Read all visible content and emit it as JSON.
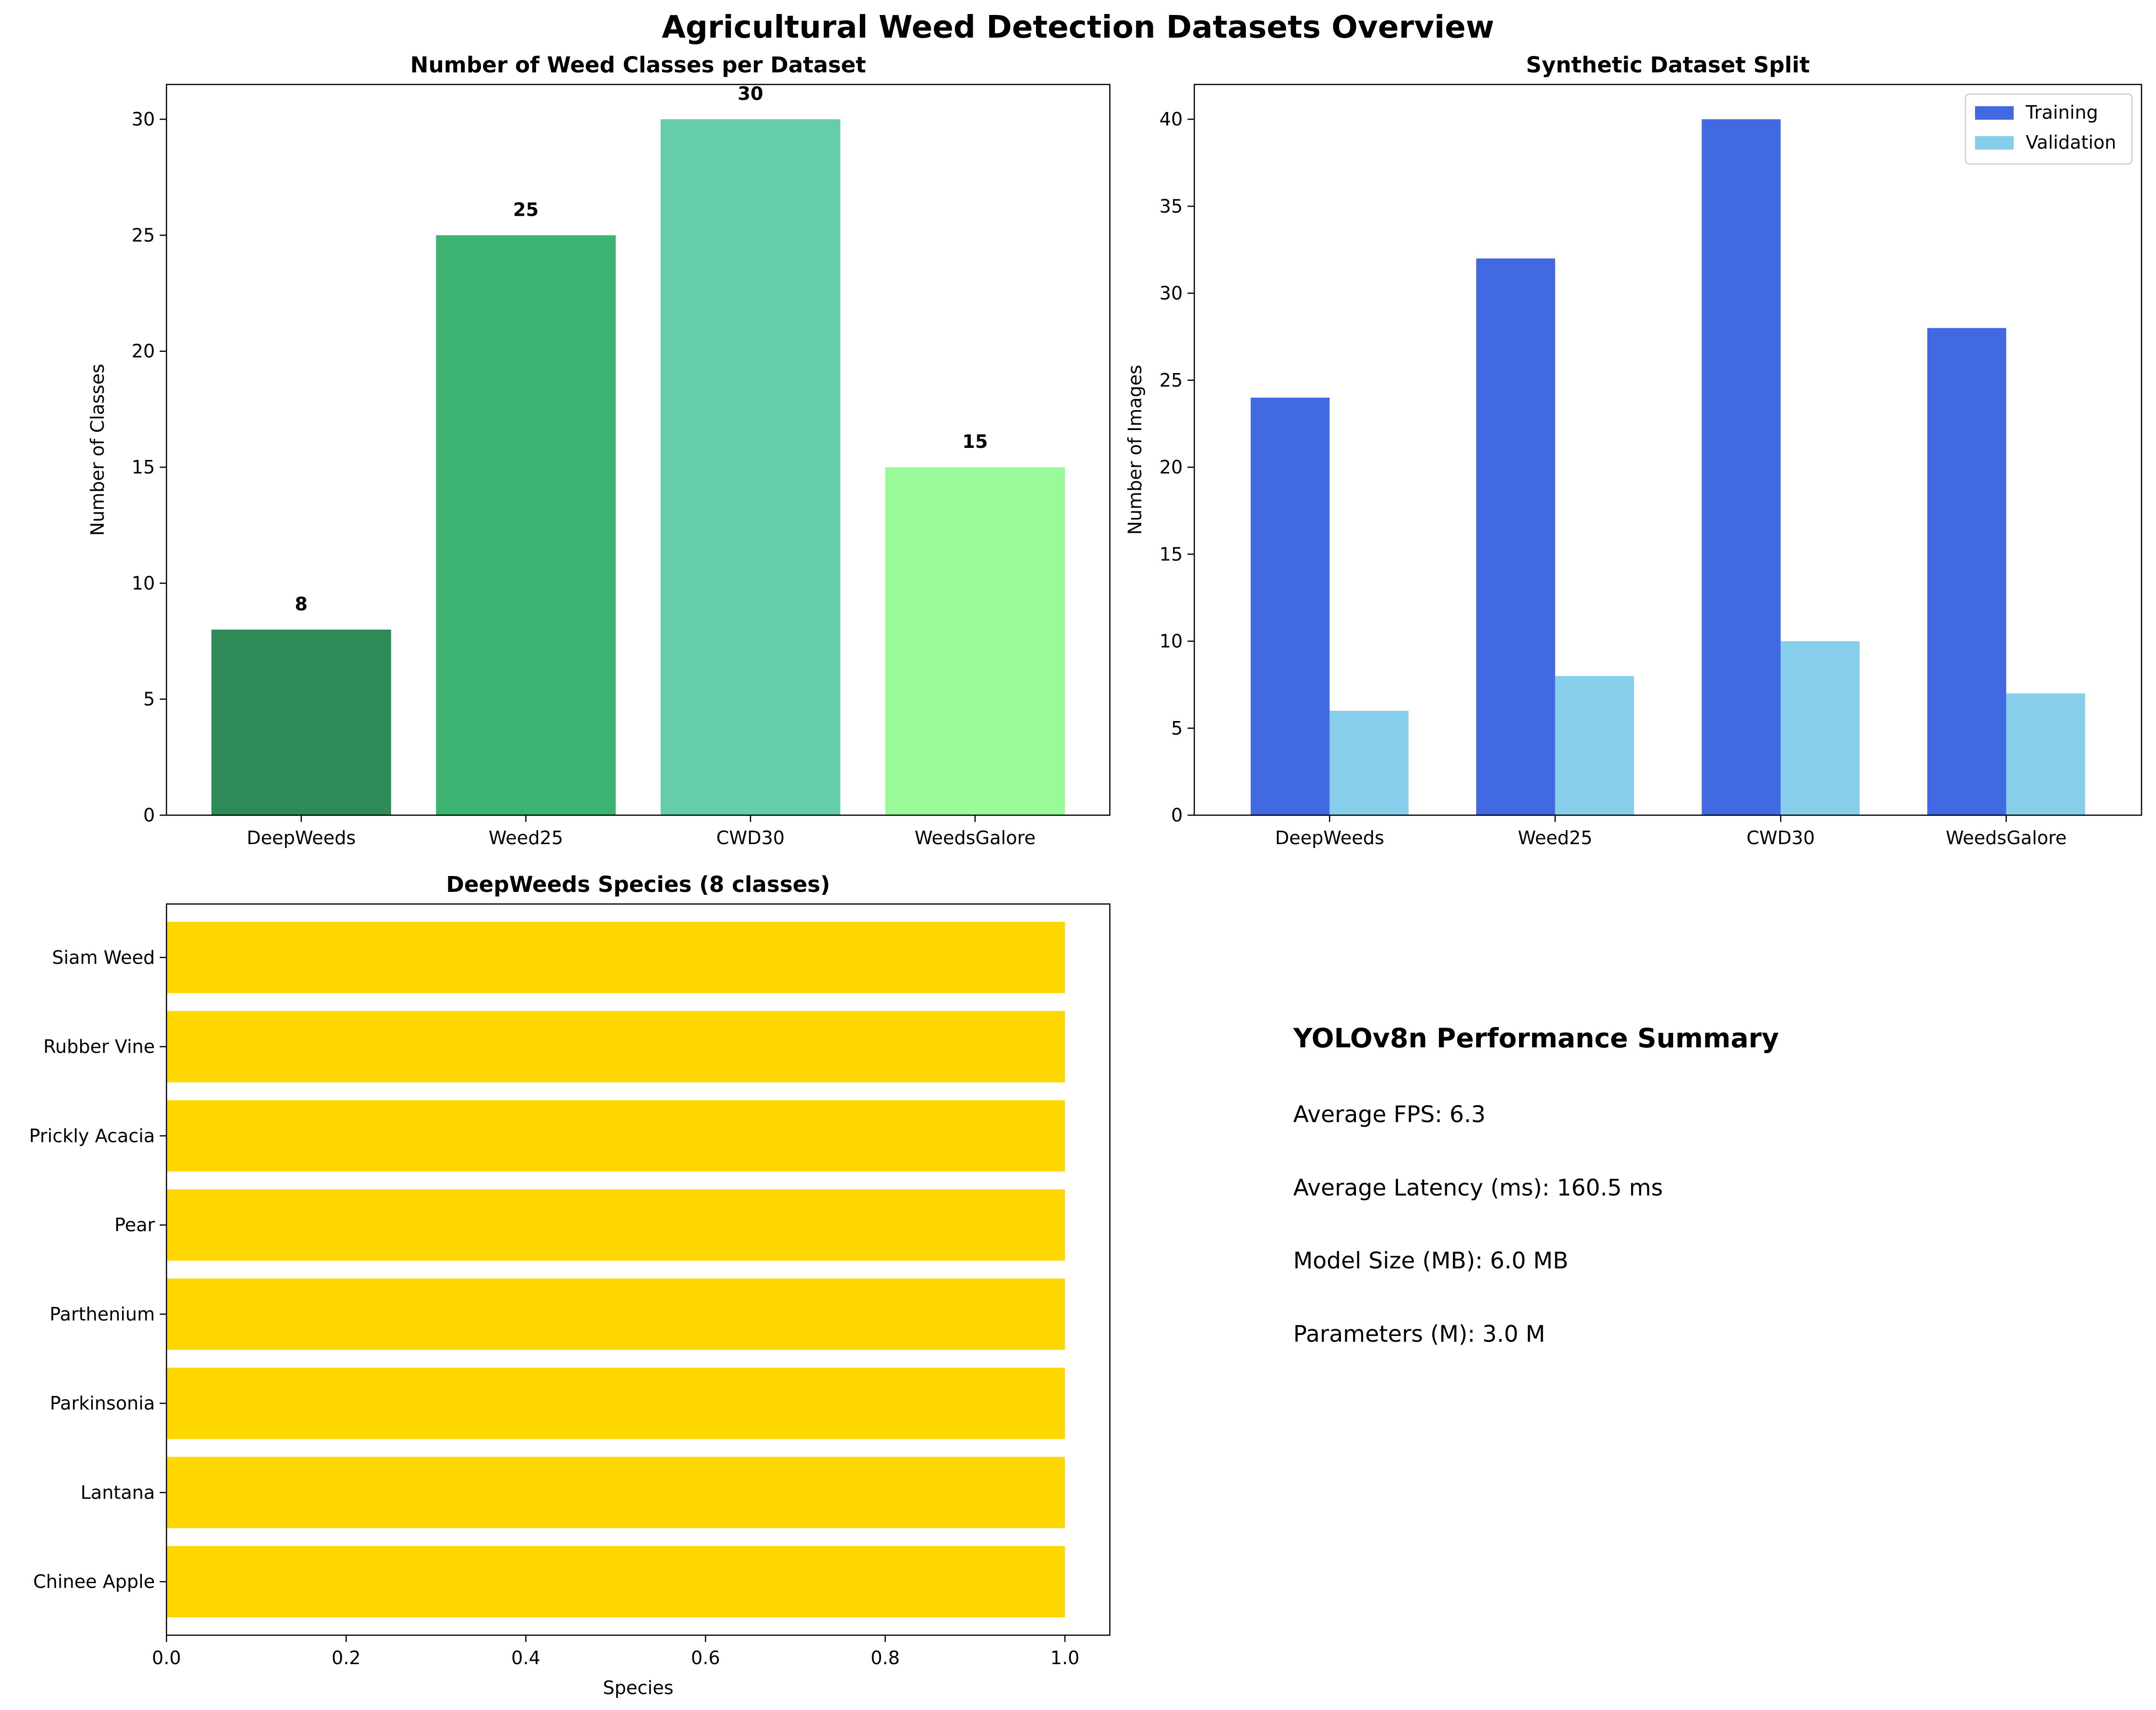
{
  "figure": {
    "title": "Agricultural Weed Detection Datasets Overview"
  },
  "chart_data": [
    {
      "type": "bar",
      "title": "Number of Weed Classes per Dataset",
      "xlabel": "",
      "ylabel": "Number of Classes",
      "categories": [
        "DeepWeeds",
        "Weed25",
        "CWD30",
        "WeedsGalore"
      ],
      "values": [
        8,
        25,
        30,
        15
      ],
      "data_labels": [
        "8",
        "25",
        "30",
        "15"
      ],
      "colors": [
        "#2e8b57",
        "#3cb371",
        "#66cdaa",
        "#98fb98"
      ],
      "ylim": [
        0,
        31.5
      ],
      "yticks": [
        0,
        5,
        10,
        15,
        20,
        25,
        30
      ],
      "grid": false
    },
    {
      "type": "bar",
      "title": "Synthetic Dataset Split",
      "xlabel": "",
      "ylabel": "Number of Images",
      "categories": [
        "DeepWeeds",
        "Weed25",
        "CWD30",
        "WeedsGalore"
      ],
      "series": [
        {
          "name": "Training",
          "values": [
            24,
            32,
            40,
            28
          ],
          "color": "#4169e1"
        },
        {
          "name": "Validation",
          "values": [
            6,
            8,
            10,
            7
          ],
          "color": "#87ceeb"
        }
      ],
      "ylim": [
        0,
        42
      ],
      "yticks": [
        0,
        5,
        10,
        15,
        20,
        25,
        30,
        35,
        40
      ],
      "legend": "top-right",
      "grid": false
    },
    {
      "type": "bar",
      "orientation": "horizontal",
      "title": "DeepWeeds Species (8 classes)",
      "xlabel": "Species",
      "ylabel": "",
      "categories": [
        "Chinee Apple",
        "Lantana",
        "Parkinsonia",
        "Parthenium",
        "Pear",
        "Prickly Acacia",
        "Rubber Vine",
        "Siam Weed"
      ],
      "values": [
        1,
        1,
        1,
        1,
        1,
        1,
        1,
        1
      ],
      "color": "#ffd700",
      "xlim": [
        0,
        1.05
      ],
      "xticks": [
        "0.0",
        "0.2",
        "0.4",
        "0.6",
        "0.8",
        "1.0"
      ],
      "grid": false
    }
  ],
  "summary": {
    "title": "YOLOv8n Performance Summary",
    "lines": [
      "Average FPS: 6.3",
      "Average Latency (ms): 160.5 ms",
      "Model Size (MB): 6.0 MB",
      "Parameters (M): 3.0 M"
    ]
  }
}
